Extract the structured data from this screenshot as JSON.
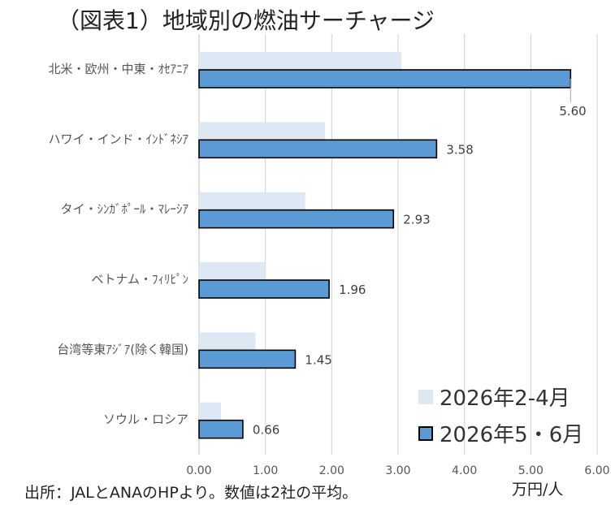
{
  "chart_data": {
    "type": "bar",
    "orientation": "horizontal",
    "title": "（図表1）地域別の燃油サーチャージ",
    "categories": [
      "北米・欧州・中東・ｵｾｱﾆｱ",
      "ハワイ・インド・ｲﾝﾄﾞﾈｼｱ",
      "タイ・ｼﾝｶﾞﾎﾟｰﾙ・ﾏﾚｰｼｱ",
      "ベトナム・ﾌｨﾘﾋﾟﾝ",
      "台湾等東ｱｼﾞｱ(除く韓国)",
      "ソウル・ロシア"
    ],
    "series": [
      {
        "name": "2026年2-4月",
        "color": "#dde8f4",
        "values": [
          3.05,
          1.9,
          1.6,
          1.0,
          0.85,
          0.33
        ]
      },
      {
        "name": "2026年5・6月",
        "color": "#5b9bd5",
        "values": [
          5.6,
          3.58,
          2.93,
          1.96,
          1.45,
          0.66
        ],
        "data_labels": [
          "5.60",
          "3.58",
          "2.93",
          "1.96",
          "1.45",
          "0.66"
        ]
      }
    ],
    "xlim": [
      0,
      6
    ],
    "xticks": [
      "0.00",
      "1.00",
      "2.00",
      "3.00",
      "4.00",
      "5.00",
      "6.00"
    ],
    "xlabel": "万円/人",
    "grid": true,
    "legend_position": "bottom-right"
  },
  "source_note": "出所：JALとANAのHPより。数値は2社の平均。"
}
